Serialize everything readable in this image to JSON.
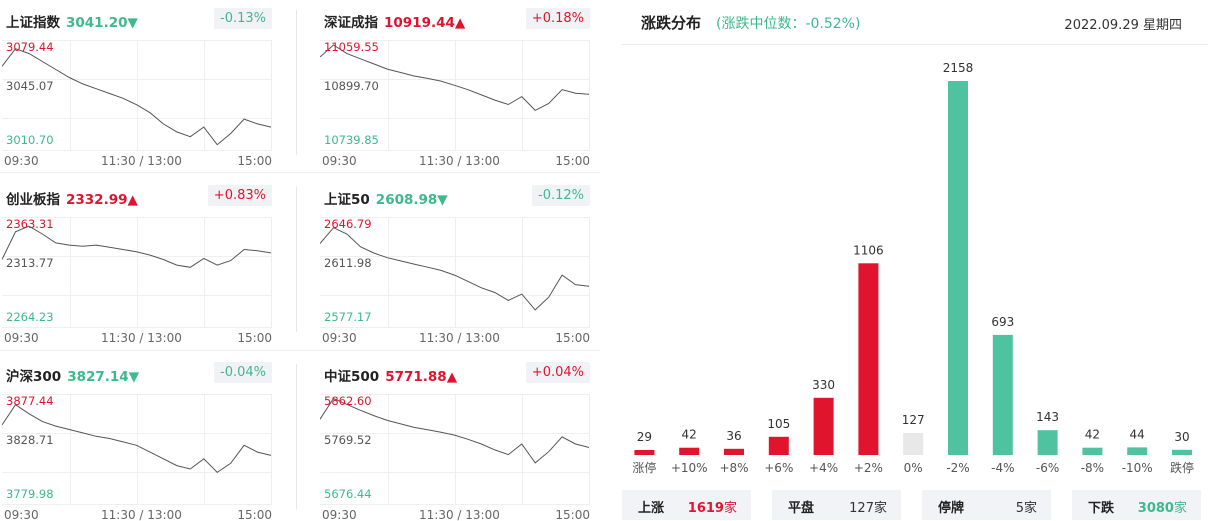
{
  "chart_data": [
    {
      "type": "line",
      "title": "上证指数",
      "value": "3041.20",
      "direction": "down",
      "change_pct": "-0.13%",
      "y_labels": {
        "high": "3079.44",
        "mid": "3045.07",
        "low": "3010.70"
      },
      "ylim": [
        3010.7,
        3079.44
      ],
      "x_ticks": [
        "09:30",
        "11:30 / 13:00",
        "15:00"
      ],
      "values": [
        3063,
        3074,
        3071,
        3066,
        3061,
        3056,
        3052,
        3049,
        3046,
        3043,
        3039,
        3034,
        3027,
        3022,
        3019,
        3025,
        3014,
        3021,
        3030,
        3027,
        3025
      ]
    },
    {
      "type": "line",
      "title": "深证成指",
      "value": "10919.44",
      "direction": "up",
      "change_pct": "+0.18%",
      "y_labels": {
        "high": "11059.55",
        "mid": "10899.70",
        "low": "10739.85"
      },
      "ylim": [
        10739.85,
        11059.55
      ],
      "x_ticks": [
        "09:30",
        "11:30 / 13:00",
        "15:00"
      ],
      "values": [
        11010,
        11045,
        11020,
        11005,
        10990,
        10975,
        10965,
        10955,
        10948,
        10940,
        10928,
        10915,
        10900,
        10885,
        10872,
        10895,
        10855,
        10875,
        10915,
        10905,
        10902
      ]
    },
    {
      "type": "line",
      "title": "创业板指",
      "value": "2332.99",
      "direction": "up",
      "change_pct": "+0.83%",
      "y_labels": {
        "high": "2363.31",
        "mid": "2313.77",
        "low": "2264.23"
      },
      "ylim": [
        2264.23,
        2363.31
      ],
      "x_ticks": [
        "09:30",
        "11:30 / 13:00",
        "15:00"
      ],
      "values": [
        2325,
        2350,
        2355,
        2348,
        2340,
        2338,
        2337,
        2338,
        2336,
        2334,
        2332,
        2329,
        2325,
        2320,
        2318,
        2326,
        2320,
        2324,
        2334,
        2333,
        2331
      ]
    },
    {
      "type": "line",
      "title": "上证50",
      "value": "2608.98",
      "direction": "down",
      "change_pct": "-0.12%",
      "y_labels": {
        "high": "2646.79",
        "mid": "2611.98",
        "low": "2577.17"
      },
      "ylim": [
        2577.17,
        2646.79
      ],
      "x_ticks": [
        "09:30",
        "11:30 / 13:00",
        "15:00"
      ],
      "values": [
        2630,
        2640,
        2636,
        2628,
        2624,
        2621,
        2619,
        2617,
        2615,
        2613,
        2610,
        2606,
        2602,
        2599,
        2594,
        2598,
        2588,
        2596,
        2610,
        2604,
        2603
      ]
    },
    {
      "type": "line",
      "title": "沪深300",
      "value": "3827.14",
      "direction": "down",
      "change_pct": "-0.04%",
      "y_labels": {
        "high": "3877.44",
        "mid": "3828.71",
        "low": "3779.98"
      },
      "ylim": [
        3779.98,
        3877.44
      ],
      "x_ticks": [
        "09:30",
        "11:30 / 13:00",
        "15:00"
      ],
      "values": [
        3850,
        3868,
        3860,
        3853,
        3849,
        3846,
        3843,
        3840,
        3838,
        3835,
        3832,
        3826,
        3820,
        3814,
        3811,
        3820,
        3808,
        3816,
        3832,
        3826,
        3823
      ]
    },
    {
      "type": "line",
      "title": "中证500",
      "value": "5771.88",
      "direction": "up",
      "change_pct": "+0.04%",
      "y_labels": {
        "high": "5862.60",
        "mid": "5769.52",
        "low": "5676.44"
      },
      "ylim": [
        5676.44,
        5862.6
      ],
      "x_ticks": [
        "09:30",
        "11:30 / 13:00",
        "15:00"
      ],
      "values": [
        5820,
        5855,
        5845,
        5835,
        5826,
        5818,
        5812,
        5806,
        5802,
        5798,
        5793,
        5786,
        5778,
        5768,
        5760,
        5778,
        5746,
        5765,
        5790,
        5778,
        5772
      ]
    },
    {
      "type": "bar",
      "title": "涨跌分布",
      "subtitle": "(涨跌中位数：-0.52%)",
      "date": "2022.09.29  星期四",
      "categories": [
        "涨停",
        "+10%",
        "+8%",
        "+6%",
        "+4%",
        "+2%",
        "0%",
        "-2%",
        "-4%",
        "-6%",
        "-8%",
        "-10%",
        "跌停"
      ],
      "values": [
        29,
        42,
        36,
        105,
        330,
        1106,
        127,
        2158,
        693,
        143,
        42,
        44,
        30
      ],
      "colors": [
        "#e0142d",
        "#e0142d",
        "#e0142d",
        "#e0142d",
        "#e0142d",
        "#e0142d",
        "#e8e8e8",
        "#4fc29f",
        "#4fc29f",
        "#4fc29f",
        "#4fc29f",
        "#4fc29f",
        "#4fc29f"
      ],
      "ylim": [
        0,
        2158
      ]
    }
  ],
  "summary": [
    {
      "label": "上涨",
      "value": "1619",
      "unit": "家",
      "color": "#e0142d"
    },
    {
      "label": "平盘",
      "value": "127",
      "unit": "家",
      "color": "#333333"
    },
    {
      "label": "停牌",
      "value": "5",
      "unit": "家",
      "color": "#333333"
    },
    {
      "label": "下跌",
      "value": "3080",
      "unit": "家",
      "color": "#3dba8c"
    }
  ],
  "colors": {
    "up": "#e0142d",
    "down": "#3dba8c",
    "flat": "#e8e8e8",
    "bar_down": "#4fc29f"
  }
}
